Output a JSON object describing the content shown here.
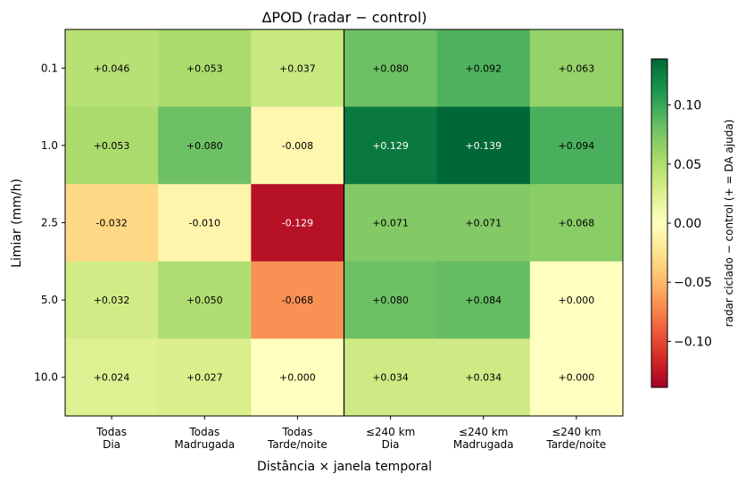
{
  "chart_data": {
    "type": "heatmap",
    "title": "ΔPOD  (radar − control)",
    "xlabel": "Distância × janela temporal",
    "ylabel": "Limiar (mm/h)",
    "x_categories": [
      [
        "Todas",
        "Dia"
      ],
      [
        "Todas",
        "Madrugada"
      ],
      [
        "Todas",
        "Tarde/noite"
      ],
      [
        "≤240 km",
        "Dia"
      ],
      [
        "≤240 km",
        "Madrugada"
      ],
      [
        "≤240 km",
        "Tarde/noite"
      ]
    ],
    "y_categories": [
      "0.1",
      "1.0",
      "2.5",
      "5.0",
      "10.0"
    ],
    "values": [
      [
        0.046,
        0.053,
        0.037,
        0.08,
        0.092,
        0.063
      ],
      [
        0.053,
        0.08,
        -0.008,
        0.129,
        0.139,
        0.094
      ],
      [
        -0.032,
        -0.01,
        -0.129,
        0.071,
        0.071,
        0.068
      ],
      [
        0.032,
        0.05,
        -0.068,
        0.08,
        0.084,
        0.0
      ],
      [
        0.024,
        0.027,
        0.0,
        0.034,
        0.034,
        0.0
      ]
    ],
    "cell_labels": [
      [
        "+0.046",
        "+0.053",
        "+0.037",
        "+0.080",
        "+0.092",
        "+0.063"
      ],
      [
        "+0.053",
        "+0.080",
        "-0.008",
        "+0.129",
        "+0.139",
        "+0.094"
      ],
      [
        "-0.032",
        "-0.010",
        "-0.129",
        "+0.071",
        "+0.071",
        "+0.068"
      ],
      [
        "+0.032",
        "+0.050",
        "-0.068",
        "+0.080",
        "+0.084",
        "+0.000"
      ],
      [
        "+0.024",
        "+0.027",
        "+0.000",
        "+0.034",
        "+0.034",
        "+0.000"
      ]
    ],
    "colorscale": "RdYlGn",
    "vmin": -0.139,
    "vmax": 0.139,
    "colorbar": {
      "label": "radar ciclado − control  (+ = DA ajuda)",
      "ticks": [
        0.1,
        0.05,
        0.0,
        -0.05,
        -0.1
      ],
      "tick_labels": [
        "0.10",
        "0.05",
        "0.00",
        "−0.05",
        "−0.10"
      ]
    },
    "separator_after_column": 3,
    "grid": false
  }
}
